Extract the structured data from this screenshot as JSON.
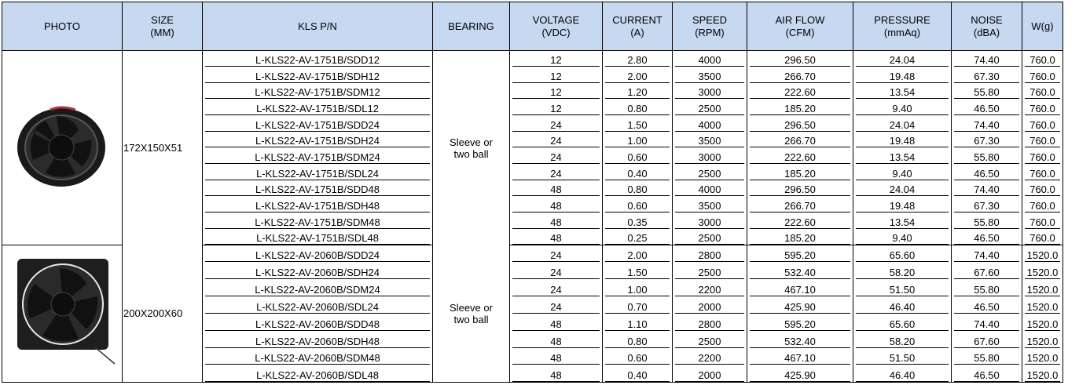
{
  "table": {
    "header": [
      "PHOTO",
      "SIZE\n(MM)",
      "KLS P/N",
      "BEARING",
      "VOLTAGE\n(VDC)",
      "CURRENT\n(A)",
      "SPEED\n(RPM)",
      "AIR FLOW\n(CFM)",
      "PRESSURE\n(mmAq)",
      "NOISE\n(dBA)",
      "W(g)"
    ],
    "groups": [
      {
        "size": "172X150X51",
        "bearing": "Sleeve or\ntwo ball",
        "rows": [
          [
            "L-KLS22-AV-1751B/SDD12",
            "12",
            "2.80",
            "4000",
            "296.50",
            "24.04",
            "74.40",
            "760.0"
          ],
          [
            "L-KLS22-AV-1751B/SDH12",
            "12",
            "2.00",
            "3500",
            "266.70",
            "19.48",
            "67.30",
            "760.0"
          ],
          [
            "L-KLS22-AV-1751B/SDM12",
            "12",
            "1.20",
            "3000",
            "222.60",
            "13.54",
            "55.80",
            "760.0"
          ],
          [
            "L-KLS22-AV-1751B/SDL12",
            "12",
            "0.80",
            "2500",
            "185.20",
            "9.40",
            "46.50",
            "760.0"
          ],
          [
            "L-KLS22-AV-1751B/SDD24",
            "24",
            "1.50",
            "4000",
            "296.50",
            "24.04",
            "74.40",
            "760.0"
          ],
          [
            "L-KLS22-AV-1751B/SDH24",
            "24",
            "1.00",
            "3500",
            "266.70",
            "19.48",
            "67.30",
            "760.0"
          ],
          [
            "L-KLS22-AV-1751B/SDM24",
            "24",
            "0.60",
            "3000",
            "222.60",
            "13.54",
            "55.80",
            "760.0"
          ],
          [
            "L-KLS22-AV-1751B/SDL24",
            "24",
            "0.40",
            "2500",
            "185.20",
            "9.40",
            "46.50",
            "760.0"
          ],
          [
            "L-KLS22-AV-1751B/SDD48",
            "48",
            "0.80",
            "4000",
            "296.50",
            "24.04",
            "74.40",
            "760.0"
          ],
          [
            "L-KLS22-AV-1751B/SDH48",
            "48",
            "0.60",
            "3500",
            "266.70",
            "19.48",
            "67.30",
            "760.0"
          ],
          [
            "L-KLS22-AV-1751B/SDM48",
            "48",
            "0.35",
            "3000",
            "222.60",
            "13.54",
            "55.80",
            "760.0"
          ],
          [
            "L-KLS22-AV-1751B/SDL48",
            "48",
            "0.25",
            "2500",
            "185.20",
            "9.40",
            "46.50",
            "760.0"
          ]
        ]
      },
      {
        "size": "200X200X60",
        "bearing": "Sleeve or\ntwo ball",
        "rows": [
          [
            "L-KLS22-AV-2060B/SDD24",
            "24",
            "2.00",
            "2800",
            "595.20",
            "65.60",
            "74.40",
            "1520.0"
          ],
          [
            "L-KLS22-AV-2060B/SDH24",
            "24",
            "1.50",
            "2500",
            "532.40",
            "58.20",
            "67.60",
            "1520.0"
          ],
          [
            "L-KLS22-AV-2060B/SDM24",
            "24",
            "1.00",
            "2200",
            "467.10",
            "51.50",
            "55.80",
            "1520.0"
          ],
          [
            "L-KLS22-AV-2060B/SDL24",
            "24",
            "0.70",
            "2000",
            "425.90",
            "46.40",
            "46.50",
            "1520.0"
          ],
          [
            "L-KLS22-AV-2060B/SDD48",
            "48",
            "1.10",
            "2800",
            "595.20",
            "65.60",
            "74.40",
            "1520.0"
          ],
          [
            "L-KLS22-AV-2060B/SDH48",
            "48",
            "0.80",
            "2500",
            "532.40",
            "58.20",
            "67.60",
            "1520.0"
          ],
          [
            "L-KLS22-AV-2060B/SDM48",
            "48",
            "0.60",
            "2200",
            "467.10",
            "51.50",
            "55.80",
            "1520.0"
          ],
          [
            "L-KLS22-AV-2060B/SDL48",
            "48",
            "0.40",
            "2000",
            "425.90",
            "46.40",
            "46.50",
            "1520.0"
          ]
        ]
      }
    ]
  }
}
